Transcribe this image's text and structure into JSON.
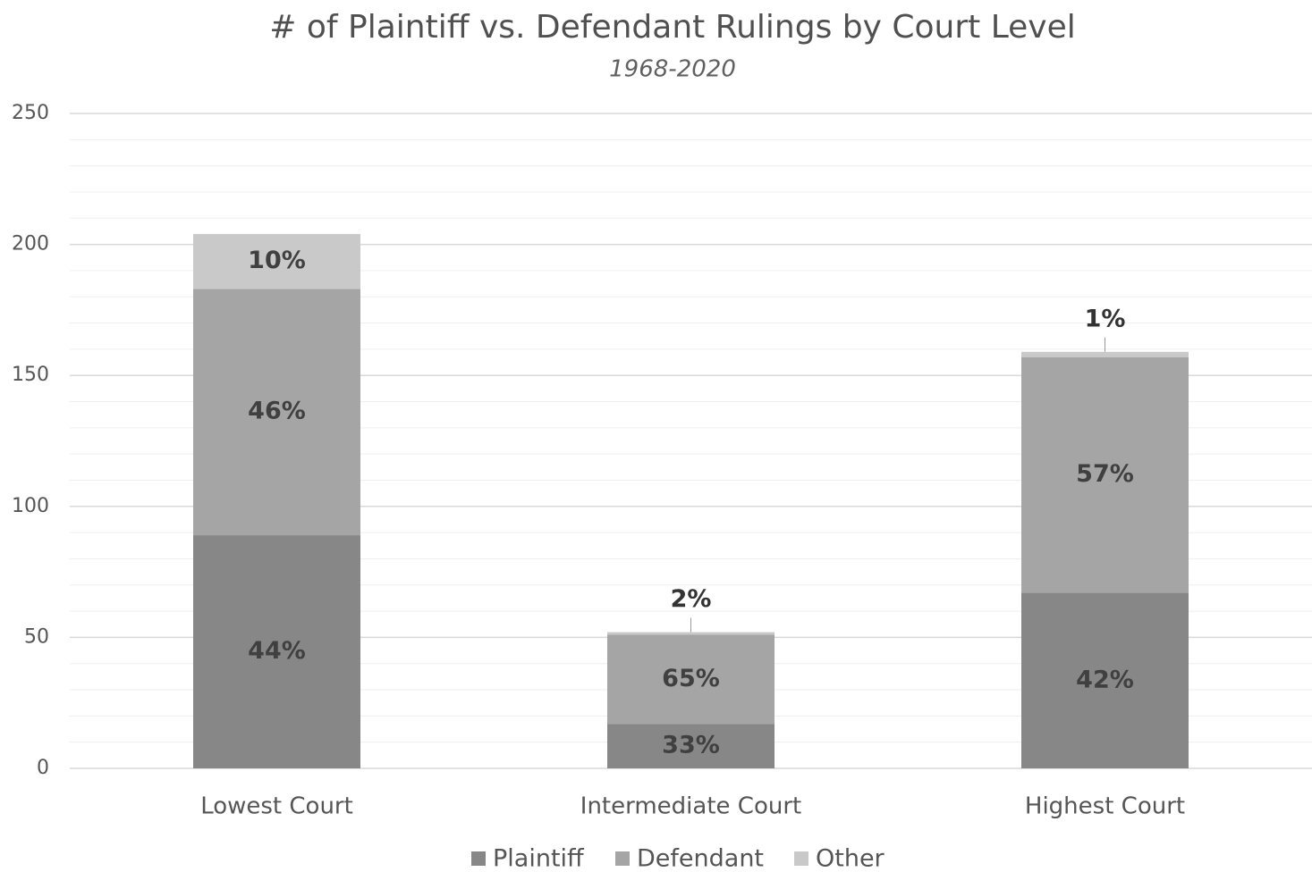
{
  "chart_data": {
    "type": "stacked_bar",
    "title": "# of Plaintiff vs. Defendant Rulings by Court Level",
    "subtitle": "1968-2020",
    "categories": [
      "Lowest Court",
      "Intermediate Court",
      "Highest Court"
    ],
    "series": [
      {
        "name": "Plaintiff",
        "color": "#878787",
        "values": [
          89,
          17,
          67
        ],
        "segment_labels": [
          "44%",
          "33%",
          "42%"
        ]
      },
      {
        "name": "Defendant",
        "color": "#a5a5a5",
        "values": [
          94,
          34,
          90
        ],
        "segment_labels": [
          "46%",
          "65%",
          "57%"
        ]
      },
      {
        "name": "Other",
        "color": "#c9c9c9",
        "values": [
          21,
          1,
          2
        ],
        "segment_labels": [
          "10%",
          "2%",
          "1%"
        ]
      }
    ],
    "ylim": [
      0,
      250
    ],
    "yticks": [
      0,
      50,
      100,
      150,
      200,
      250
    ],
    "minor_yticks": [
      10,
      20,
      30,
      40,
      60,
      70,
      80,
      90,
      110,
      120,
      130,
      140,
      160,
      170,
      180,
      190,
      210,
      220,
      230,
      240
    ],
    "grid": true,
    "legend": "bottom"
  }
}
